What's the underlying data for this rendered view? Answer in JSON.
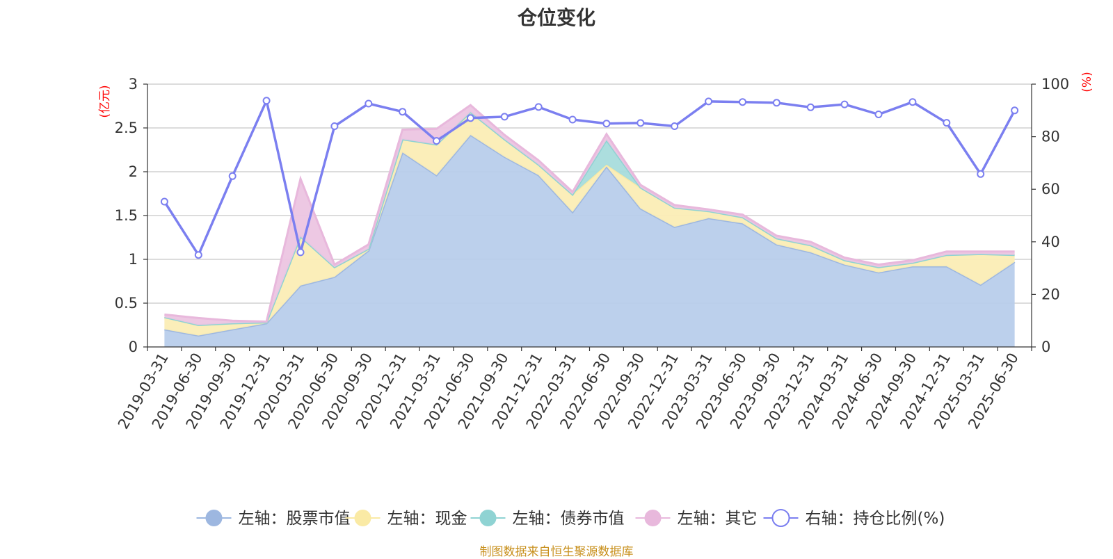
{
  "title": "仓位变化",
  "source": "制图数据来自恒生聚源数据库",
  "colors": {
    "stock": "#9db7e0",
    "stock_fill": "#b8cdeb",
    "cash": "#faeaa5",
    "cash_fill": "#fbedb5",
    "bond": "#8fd3d3",
    "bond_fill": "#a8dcdc",
    "other": "#e8b8dc",
    "other_fill": "#ecc5e2",
    "ratio": "#7b7ff0",
    "axis_unit": "#ff0000",
    "grid": "#c8c8c8"
  },
  "chart_data": {
    "type": "area",
    "title": "仓位变化",
    "stacked": true,
    "categories": [
      "2019-03-31",
      "2019-06-30",
      "2019-09-30",
      "2019-12-31",
      "2020-03-31",
      "2020-06-30",
      "2020-09-30",
      "2020-12-31",
      "2021-03-31",
      "2021-06-30",
      "2021-09-30",
      "2021-12-31",
      "2022-03-31",
      "2022-06-30",
      "2022-09-30",
      "2022-12-31",
      "2023-03-31",
      "2023-06-30",
      "2023-09-30",
      "2023-12-31",
      "2024-03-31",
      "2024-06-30",
      "2024-09-30",
      "2024-12-31",
      "2025-03-31",
      "2025-06-30"
    ],
    "y_left": {
      "label": "(亿元)",
      "min": 0,
      "max": 3,
      "ticks": [
        "0",
        "0.5",
        "1",
        "1.5",
        "2",
        "2.5",
        "3"
      ]
    },
    "y_right": {
      "label": "(%)",
      "min": 0,
      "max": 100,
      "ticks": [
        "0",
        "20",
        "40",
        "60",
        "80",
        "100"
      ]
    },
    "grid": true,
    "legend_position": "bottom",
    "series": [
      {
        "key": "stock",
        "name": "左轴：股票市值",
        "axis": "left",
        "type": "area",
        "values": [
          0.2,
          0.13,
          0.2,
          0.27,
          0.7,
          0.8,
          1.1,
          2.22,
          1.96,
          2.42,
          2.17,
          1.96,
          1.54,
          2.06,
          1.58,
          1.37,
          1.47,
          1.41,
          1.17,
          1.08,
          0.94,
          0.85,
          0.92,
          0.92,
          0.71,
          0.97
        ]
      },
      {
        "key": "cash",
        "name": "左轴：现金",
        "axis": "left",
        "type": "area",
        "values": [
          0.14,
          0.12,
          0.07,
          0.01,
          0.56,
          0.11,
          0.02,
          0.15,
          0.35,
          0.26,
          0.2,
          0.12,
          0.2,
          0.02,
          0.24,
          0.22,
          0.08,
          0.07,
          0.07,
          0.08,
          0.05,
          0.06,
          0.04,
          0.13,
          0.35,
          0.08
        ]
      },
      {
        "key": "bond",
        "name": "左轴：债券市值",
        "axis": "left",
        "type": "area",
        "values": [
          0,
          0,
          0,
          0,
          0,
          0,
          0,
          0,
          0,
          0,
          0,
          0,
          0,
          0.28,
          0,
          0,
          0,
          0,
          0,
          0,
          0,
          0,
          0,
          0,
          0,
          0
        ]
      },
      {
        "key": "other",
        "name": "左轴：其它",
        "axis": "left",
        "type": "area",
        "values": [
          0.03,
          0.08,
          0.03,
          0.01,
          0.66,
          0.03,
          0.05,
          0.11,
          0.18,
          0.08,
          0.05,
          0.05,
          0.03,
          0.07,
          0.03,
          0.03,
          0.02,
          0.03,
          0.03,
          0.04,
          0.03,
          0.03,
          0.03,
          0.04,
          0.03,
          0.04
        ]
      },
      {
        "key": "ratio",
        "name": "右轴：持仓比例(%)",
        "axis": "right",
        "type": "line",
        "values": [
          55.3,
          35.0,
          65.0,
          93.7,
          36.0,
          84.0,
          92.6,
          89.5,
          78.4,
          87.1,
          87.6,
          91.3,
          86.5,
          85.0,
          85.2,
          84.0,
          93.4,
          93.2,
          92.9,
          91.2,
          92.3,
          88.5,
          93.2,
          85.3,
          65.8,
          90.0
        ]
      }
    ]
  }
}
